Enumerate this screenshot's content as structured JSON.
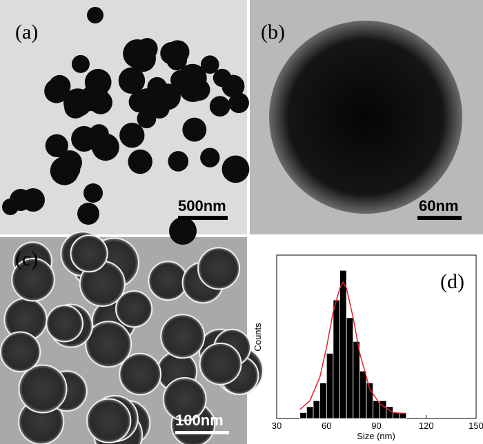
{
  "panels": [
    {
      "label": "(a)",
      "scale_bar": "500nm"
    },
    {
      "label": "(b)",
      "scale_bar": "60nm"
    },
    {
      "label": "(c)",
      "scale_bar": "100nm"
    },
    {
      "label": "(d)"
    }
  ],
  "chart_data": {
    "type": "histogram",
    "x_label": "Size (nm)",
    "y_label": "Counts",
    "bins": [
      44,
      48,
      52,
      56,
      60,
      64,
      68,
      72,
      76,
      80,
      84,
      88,
      92,
      96,
      100,
      104,
      108
    ],
    "values": [
      1,
      2,
      3,
      6,
      11,
      20,
      25,
      17,
      13,
      8,
      6,
      3,
      3,
      2,
      1,
      1
    ],
    "color": "#000000",
    "fit": {
      "color": "#e8202a",
      "x": [
        44,
        50,
        56,
        60,
        64,
        68,
        70,
        72,
        76,
        80,
        86,
        92,
        100,
        108
      ],
      "values": [
        1.5,
        3,
        7,
        12,
        18,
        22,
        23,
        22,
        17,
        11,
        5,
        2.5,
        1,
        0.8
      ]
    },
    "xlim": [
      30,
      150
    ],
    "xticks": [
      30,
      60,
      90,
      120,
      150
    ],
    "ylim": [
      0,
      27
    ]
  }
}
